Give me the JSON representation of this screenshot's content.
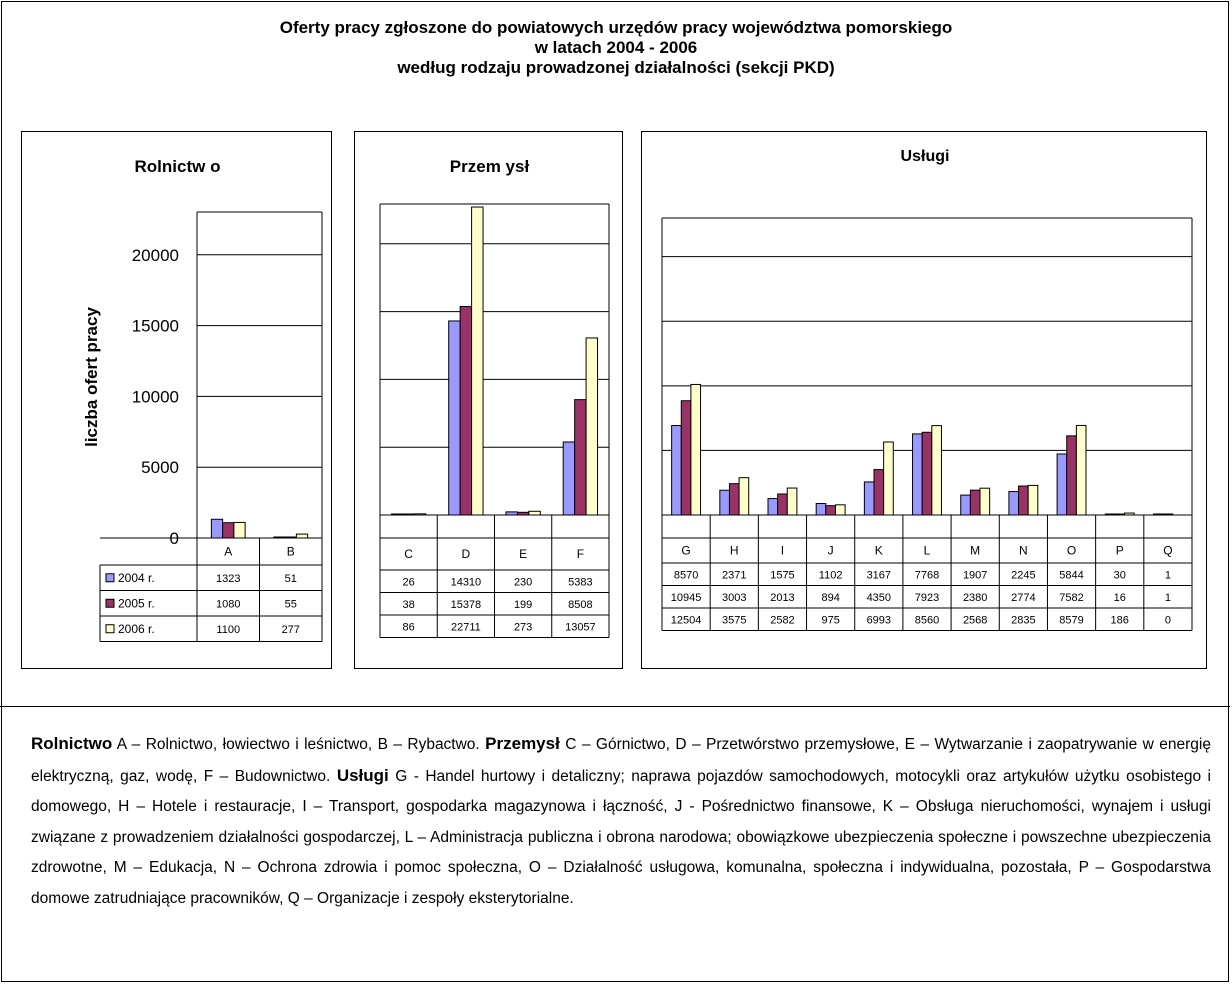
{
  "title": {
    "line1": "Oferty pracy zgłoszone do powiatowych urzędów pracy województwa pomorskiego",
    "line2": "w latach 2004 - 2006",
    "line3": "według rodzaju prowadzonej działalności (sekcji PKD)"
  },
  "colors": {
    "2004 r.": "#9999ff",
    "2005 r.": "#993366",
    "2006 r.": "#ffffcc"
  },
  "chart_data": [
    {
      "type": "bar",
      "title": "Rolnictw o",
      "ylabel": "liczba ofert pracy",
      "ylim": [
        0,
        25000
      ],
      "yticks": [
        "0",
        "5000",
        "10000",
        "15000",
        "20000"
      ],
      "grid": true,
      "categories": [
        "A",
        "B"
      ],
      "series": [
        {
          "name": "2004 r.",
          "values": [
            1323,
            51
          ]
        },
        {
          "name": "2005 r.",
          "values": [
            1080,
            55
          ]
        },
        {
          "name": "2006 r.",
          "values": [
            1100,
            277
          ]
        }
      ]
    },
    {
      "type": "bar",
      "title": "Przem ysł",
      "ylim": [
        0,
        25000
      ],
      "grid": true,
      "categories": [
        "C",
        "D",
        "E",
        "F"
      ],
      "series": [
        {
          "name": "2004 r.",
          "values": [
            26,
            14310,
            230,
            5383
          ]
        },
        {
          "name": "2005 r.",
          "values": [
            38,
            15378,
            199,
            8508
          ]
        },
        {
          "name": "2006 r.",
          "values": [
            86,
            22711,
            273,
            13057
          ]
        }
      ]
    },
    {
      "type": "bar",
      "title": "Usługi",
      "ylim": [
        0,
        22000
      ],
      "grid": true,
      "categories": [
        "G",
        "H",
        "I",
        "J",
        "K",
        "L",
        "M",
        "N",
        "O",
        "P",
        "Q"
      ],
      "series": [
        {
          "name": "2004 r.",
          "values": [
            8570,
            2371,
            1575,
            1102,
            3167,
            7768,
            1907,
            2245,
            5844,
            30,
            1
          ]
        },
        {
          "name": "2005 r.",
          "values": [
            10945,
            3003,
            2013,
            894,
            4350,
            7923,
            2380,
            2774,
            7582,
            16,
            1
          ]
        },
        {
          "name": "2006 r.",
          "values": [
            12504,
            3575,
            2582,
            975,
            6993,
            8560,
            2568,
            2835,
            8579,
            186,
            0
          ]
        }
      ]
    }
  ],
  "legend": {
    "rolnictwo_label": "Rolnictwo",
    "rolnictwo_text": " A – Rolnictwo, łowiectwo i leśnictwo, B – Rybactwo. ",
    "przemysl_label": "Przemysł",
    "przemysl_text": "  C – Górnictwo, D – Przetwórstwo przemysłowe, E – Wytwarzanie i zaopatrywanie w energię elektryczną, gaz, wodę,  F – Budownictwo. ",
    "uslugi_label": "Usługi",
    "uslugi_text": "  G - Handel hurtowy i detaliczny; naprawa pojazdów samochodowych, motocykli oraz artykułów użytku osobistego i domowego, H – Hotele  i restauracje, I – Transport, gospodarka magazynowa i łączność, J - Pośrednictwo finansowe, K – Obsługa  nieruchomości, wynajem i usługi związane z prowadzeniem działalności gospodarczej,  L – Administracja publiczna i obrona narodowa; obowiązkowe ubezpieczenia społeczne i powszechne ubezpieczenia zdrowotne, M – Edukacja,  N – Ochrona zdrowia i pomoc społeczna, O – Działalność usługowa, komunalna, społeczna i indywidualna, pozostała, P – Gospodarstwa domowe zatrudniające  pracowników, Q  – Organizacje i zespoły eksterytorialne."
  }
}
